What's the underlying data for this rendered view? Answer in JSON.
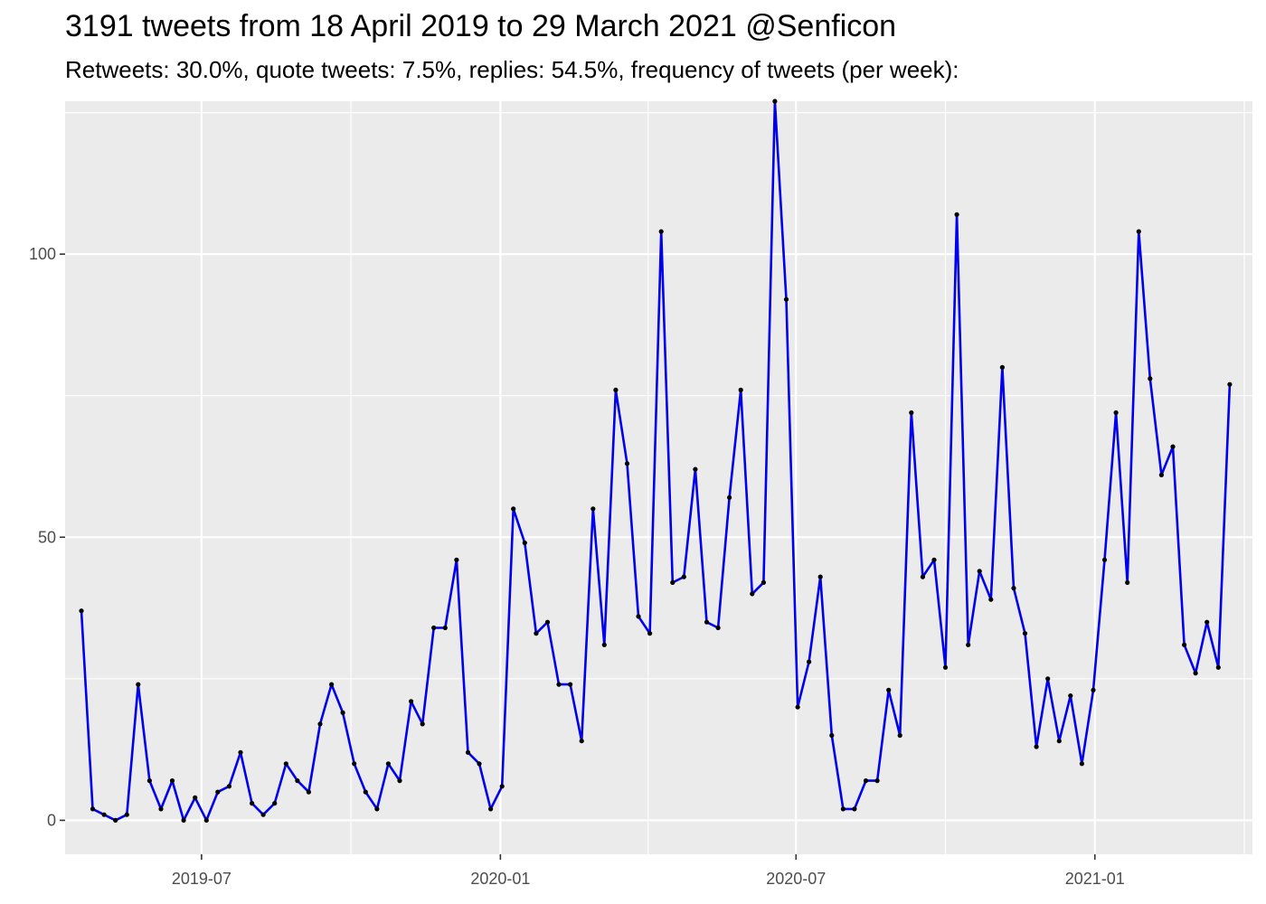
{
  "title": "3191 tweets from 18 April 2019 to 29 March 2021 @Senficon",
  "subtitle": "Retweets: 30.0%, quote tweets: 7.5%, replies: 54.5%, frequency of tweets (per week):",
  "chart_data": {
    "type": "line",
    "title": "3191 tweets from 18 April 2019 to 29 March 2021 @Senficon",
    "subtitle": "Retweets: 30.0%, quote tweets: 7.5%, replies: 54.5%, frequency of tweets (per week):",
    "xlabel": "",
    "ylabel": "",
    "x_start": "2019-04-18",
    "x_step_days": 7,
    "xlim": [
      "2019-04-08",
      "2021-04-08"
    ],
    "ylim": [
      -6,
      127
    ],
    "x_ticks": [
      {
        "date": "2019-07-01",
        "label": "2019-07"
      },
      {
        "date": "2020-01-01",
        "label": "2020-01"
      },
      {
        "date": "2020-07-01",
        "label": "2020-07"
      },
      {
        "date": "2021-01-01",
        "label": "2021-01"
      }
    ],
    "y_ticks": [
      0,
      50,
      100
    ],
    "grid": true,
    "legend": "none",
    "line_color": "#0000ee",
    "point_color": "#000000",
    "panel_color": "#ebebeb",
    "values": [
      37,
      2,
      1,
      0,
      1,
      24,
      7,
      2,
      7,
      0,
      4,
      0,
      5,
      6,
      12,
      3,
      1,
      3,
      10,
      7,
      5,
      17,
      24,
      19,
      10,
      5,
      2,
      10,
      7,
      21,
      17,
      34,
      34,
      46,
      12,
      10,
      2,
      6,
      55,
      49,
      33,
      35,
      24,
      24,
      14,
      55,
      31,
      76,
      63,
      36,
      33,
      104,
      42,
      43,
      62,
      35,
      34,
      57,
      76,
      40,
      42,
      127,
      92,
      20,
      28,
      43,
      15,
      2,
      2,
      7,
      7,
      23,
      15,
      72,
      43,
      46,
      27,
      107,
      31,
      44,
      39,
      80,
      41,
      33,
      13,
      25,
      14,
      22,
      10,
      23,
      46,
      72,
      42,
      104,
      78,
      61,
      66,
      31,
      26,
      35,
      27,
      77
    ]
  }
}
